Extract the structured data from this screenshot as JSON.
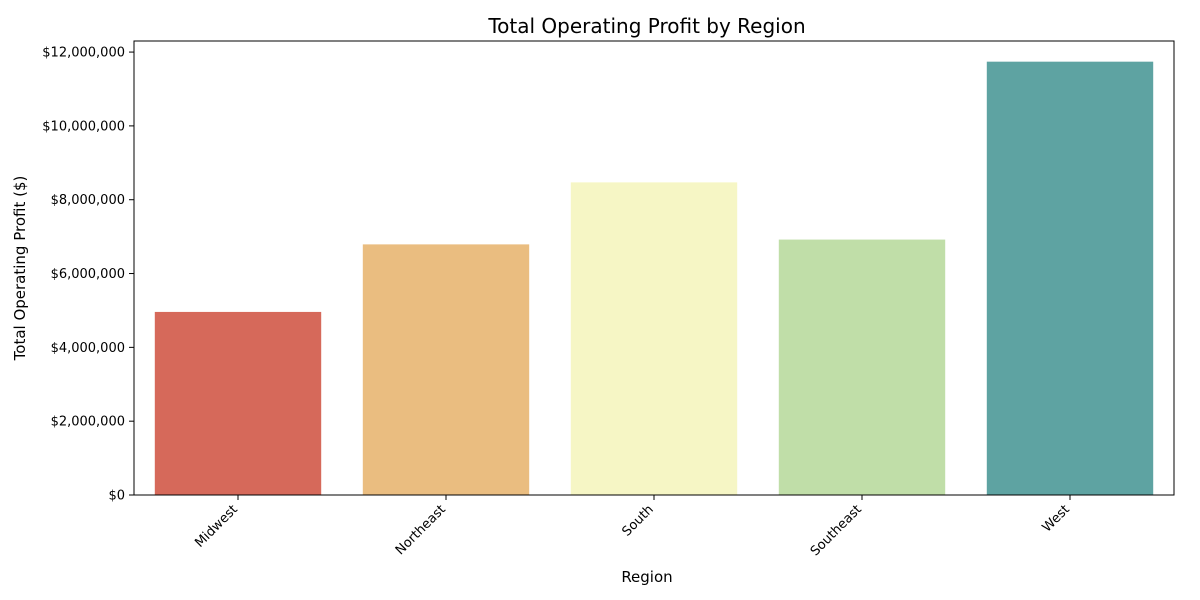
{
  "chart_data": {
    "type": "bar",
    "title": "Total Operating Profit by Region",
    "xlabel": "Region",
    "ylabel": "Total Operating Profit ($)",
    "categories": [
      "Midwest",
      "Northeast",
      "South",
      "Southeast",
      "West"
    ],
    "values": [
      4960000,
      6790000,
      8470000,
      6920000,
      11740000
    ],
    "colors": [
      "#d6695a",
      "#eabd80",
      "#f6f6c5",
      "#c0dea8",
      "#5ea3a2"
    ],
    "ylim": [
      0,
      12300000
    ],
    "yticks": [
      0,
      2000000,
      4000000,
      6000000,
      8000000,
      10000000,
      12000000
    ],
    "ytick_labels": [
      "$0",
      "$2,000,000",
      "$4,000,000",
      "$6,000,000",
      "$8,000,000",
      "$10,000,000",
      "$12,000,000"
    ],
    "grid": false,
    "legend": "none"
  }
}
